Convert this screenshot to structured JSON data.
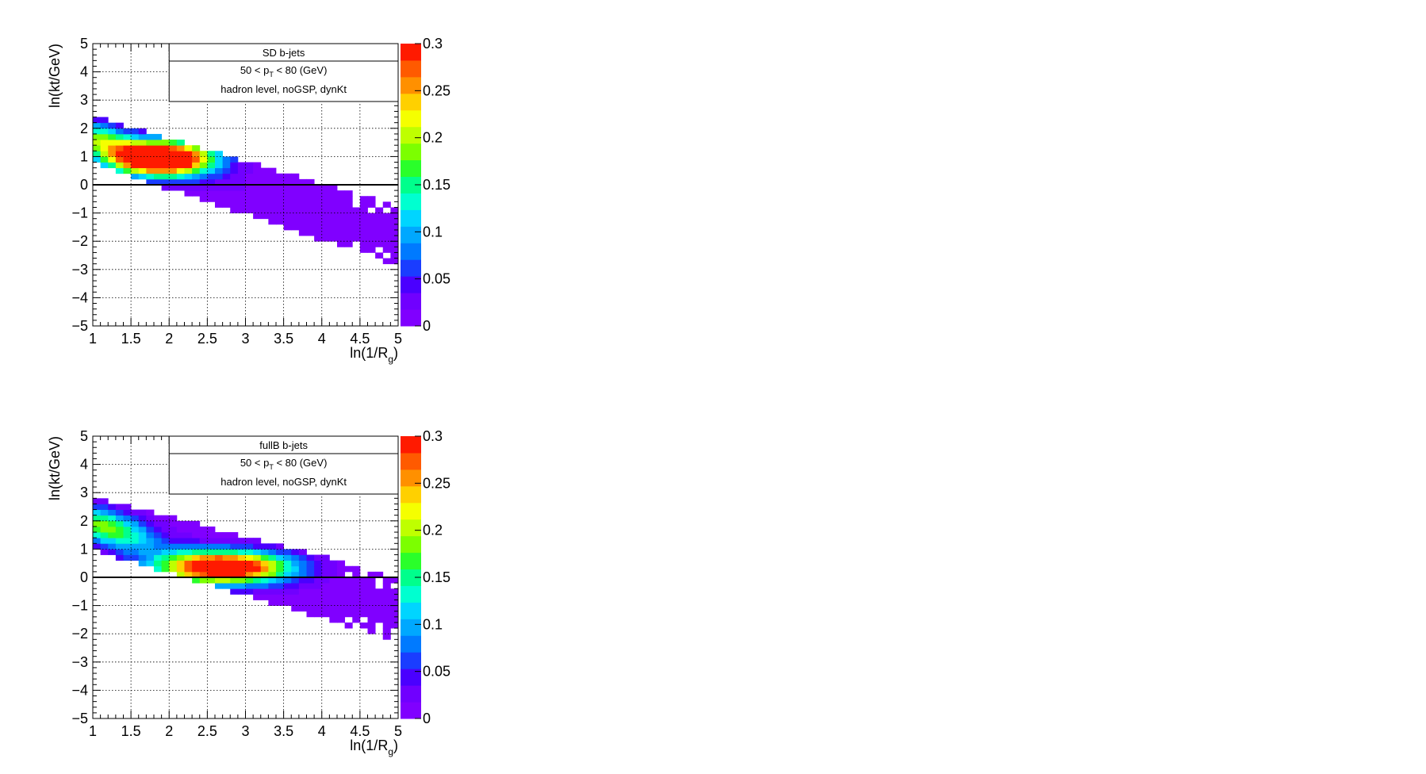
{
  "chart_data": [
    {
      "type": "heatmap",
      "legend_title": "SD b-jets",
      "legend_line2_prefix": "50 < p",
      "legend_line2_sub": "T",
      "legend_line2_suffix": " < 80 (GeV)",
      "legend_line3": "hadron level, noGSP, dynKt",
      "xlabel_prefix": "ln(1/R",
      "xlabel_sub": "g",
      "xlabel_suffix": ")",
      "ylabel": "ln(kt/GeV)",
      "xlim": [
        1,
        5
      ],
      "ylim": [
        -5,
        5
      ],
      "zlim": [
        0,
        0.3
      ],
      "x_ticks": [
        "1",
        "1.5",
        "2",
        "2.5",
        "3",
        "3.5",
        "4",
        "4.5",
        "5"
      ],
      "y_ticks": [
        "5",
        "4",
        "3",
        "2",
        "1",
        "0",
        "−1",
        "−2",
        "−3",
        "−4",
        "−5"
      ],
      "z_ticks": [
        "0.3",
        "0.25",
        "0.2",
        "0.15",
        "0.1",
        "0.05",
        "0"
      ],
      "reference_line_y": 0,
      "grid": true,
      "colorbar": "right",
      "peak": {
        "x": 1.95,
        "y": 0.95
      },
      "dist": {
        "ridge_y_at_x1": 1.6,
        "ridge_slope": -0.85,
        "sigma_x": 0.45,
        "sigma_y": 0.42,
        "amp": 0.38,
        "band_halfwidth": 0.85,
        "x_max": 5.0
      },
      "colors": [
        "#8000ff",
        "#7000ff",
        "#4a00ff",
        "#1a3dff",
        "#007aff",
        "#00a8ff",
        "#00d5ff",
        "#00ffd0",
        "#00ff8c",
        "#2aff2a",
        "#7cff00",
        "#bfff00",
        "#f5ff00",
        "#ffd000",
        "#ff9000",
        "#ff5a00",
        "#ff1a00"
      ]
    },
    {
      "type": "heatmap",
      "legend_title": "fullB b-jets",
      "legend_line2_prefix": "50 < p",
      "legend_line2_sub": "T",
      "legend_line2_suffix": " < 80 (GeV)",
      "legend_line3": "hadron level, noGSP, dynKt",
      "xlabel_prefix": "ln(1/R",
      "xlabel_sub": "g",
      "xlabel_suffix": ")",
      "ylabel": "ln(kt/GeV)",
      "xlim": [
        1,
        5
      ],
      "ylim": [
        -5,
        5
      ],
      "zlim": [
        0,
        0.3
      ],
      "x_ticks": [
        "1",
        "1.5",
        "2",
        "2.5",
        "3",
        "3.5",
        "4",
        "4.5",
        "5"
      ],
      "y_ticks": [
        "5",
        "4",
        "3",
        "2",
        "1",
        "0",
        "−1",
        "−2",
        "−3",
        "−4",
        "−5"
      ],
      "z_ticks": [
        "0.3",
        "0.25",
        "0.2",
        "0.15",
        "0.1",
        "0.05",
        "0"
      ],
      "reference_line_y": 0,
      "grid": true,
      "colorbar": "right",
      "peak": {
        "x": 2.7,
        "y": 0.35
      },
      "dist": {
        "ridge_y_at_x1": 1.9,
        "ridge_slope": -0.75,
        "sigma_x": 0.6,
        "sigma_y": 0.4,
        "amp": 0.36,
        "band_halfwidth": 0.95,
        "x_max": 5.0
      },
      "colors": [
        "#8000ff",
        "#7000ff",
        "#4a00ff",
        "#1a3dff",
        "#007aff",
        "#00a8ff",
        "#00d5ff",
        "#00ffd0",
        "#00ff8c",
        "#2aff2a",
        "#7cff00",
        "#bfff00",
        "#f5ff00",
        "#ffd000",
        "#ff9000",
        "#ff5a00",
        "#ff1a00"
      ]
    }
  ]
}
